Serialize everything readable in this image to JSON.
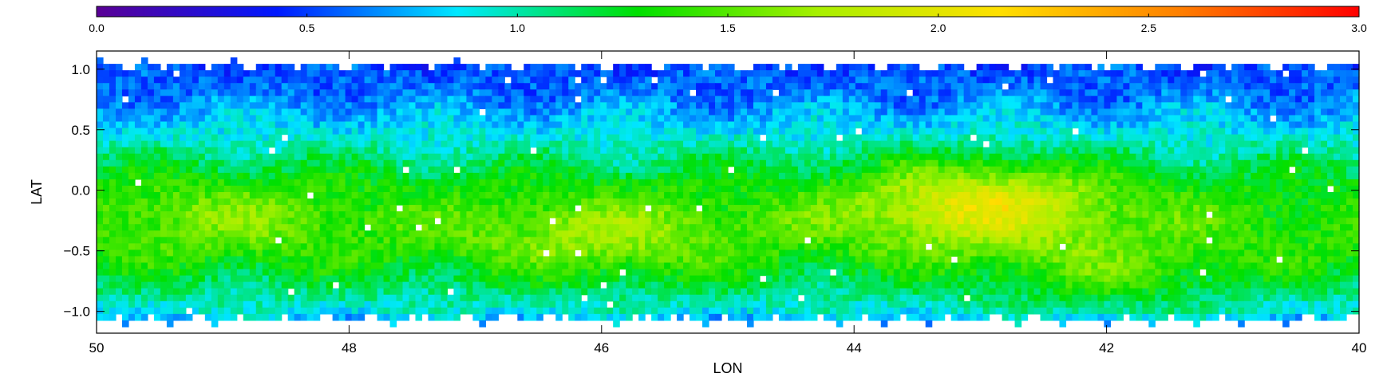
{
  "chart_data": {
    "type": "heatmap",
    "xlabel": "LON",
    "ylabel": "LAT",
    "x_range": [
      50,
      40
    ],
    "y_range": [
      -1.18,
      1.15
    ],
    "x_ticks": [
      "50",
      "48",
      "46",
      "44",
      "42",
      "40"
    ],
    "x_tick_values": [
      50,
      48,
      46,
      44,
      42,
      40
    ],
    "y_ticks": [
      "1.0",
      "0.5",
      "0.0",
      "−0.5",
      "−1.0"
    ],
    "y_tick_values": [
      1.0,
      0.5,
      0.0,
      -0.5,
      -1.0
    ],
    "colorbar": {
      "range": [
        0.0,
        3.0
      ],
      "ticks": [
        "0.0",
        "0.5",
        "1.0",
        "1.5",
        "2.0",
        "2.5",
        "3.0"
      ],
      "tick_values": [
        0.0,
        0.5,
        1.0,
        1.5,
        2.0,
        2.5,
        3.0
      ],
      "colormap": [
        "#5a0095",
        "#0018ff",
        "#00e8ff",
        "#00e000",
        "#a8f000",
        "#ffe000",
        "#ff8000",
        "#ff0000"
      ]
    },
    "lat_profile": {
      "lat": [
        1.1,
        0.8,
        0.5,
        0.25,
        0.0,
        -0.25,
        -0.5,
        -0.75,
        -1.0,
        -1.15
      ],
      "value": [
        0.5,
        0.62,
        0.85,
        1.1,
        1.3,
        1.4,
        1.35,
        1.15,
        0.9,
        0.6
      ]
    },
    "bright_regions": [
      {
        "lon": 43.0,
        "lat": -0.1,
        "peak": 2.0
      },
      {
        "lon": 46.0,
        "lat": -0.4,
        "peak": 1.65
      },
      {
        "lon": 42.0,
        "lat": -0.75,
        "peak": 1.6
      },
      {
        "lon": 49.0,
        "lat": -0.2,
        "peak": 1.55
      }
    ]
  }
}
